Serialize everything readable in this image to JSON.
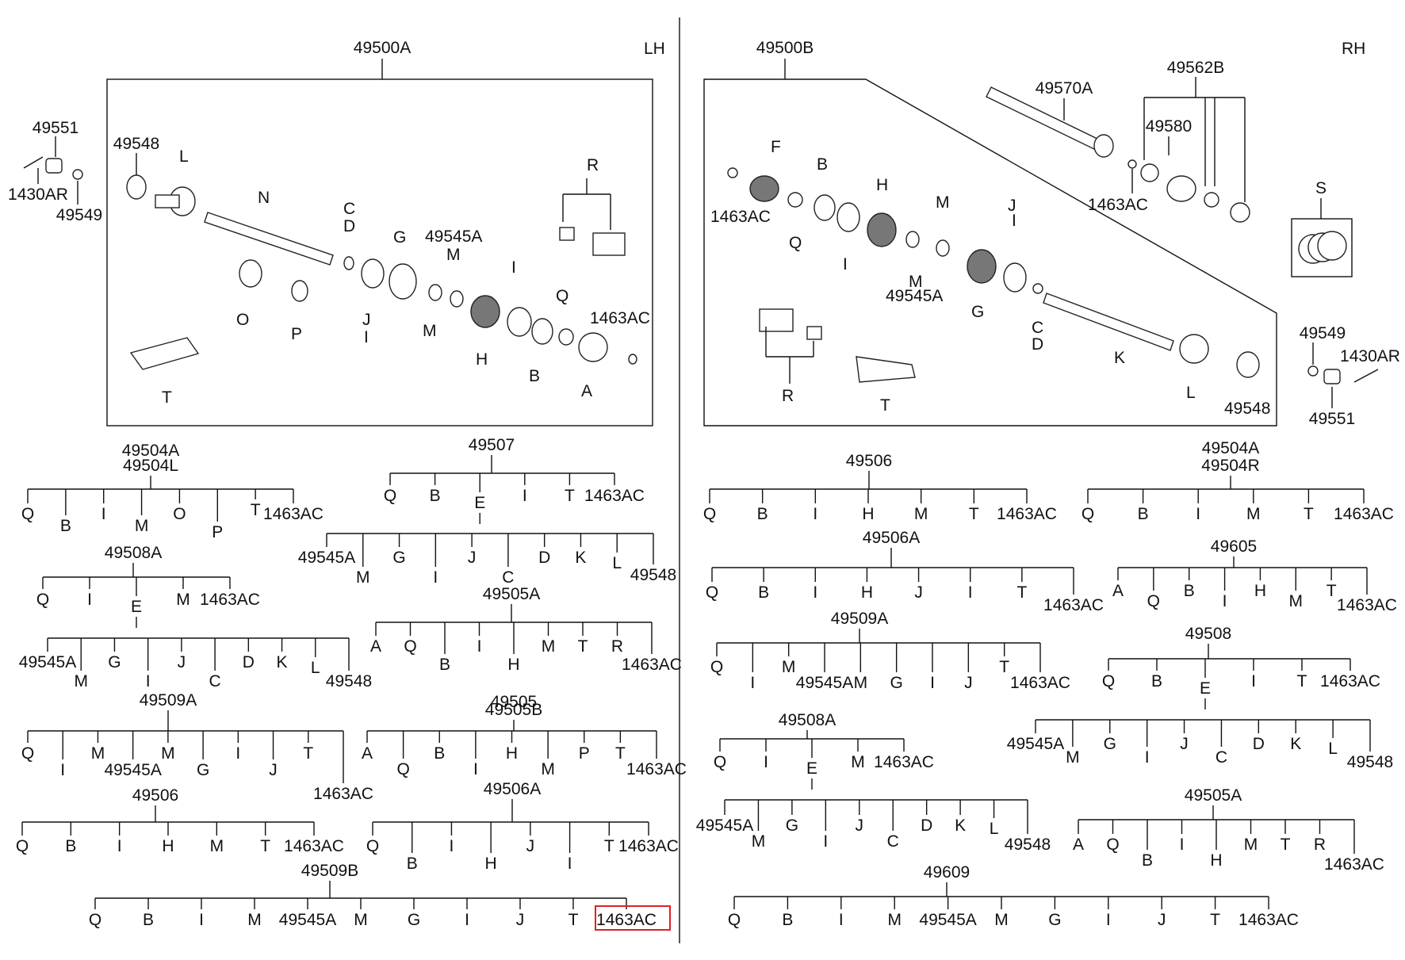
{
  "header": {
    "lh": "LH",
    "rh": "RH"
  },
  "assemblies": {
    "lh": "49500A",
    "rh": "49500B",
    "lh_outside": [
      "49551",
      "49548",
      "1430AR",
      "49549"
    ],
    "rh_outside": [
      "49549",
      "1430AR",
      "49551"
    ],
    "intermediate": [
      "49570A",
      "49562B",
      "49580",
      "1463AC"
    ],
    "kit": "S"
  },
  "lh_callouts": [
    "L",
    "N",
    "C",
    "D",
    "G",
    "49545A",
    "M",
    "R",
    "O",
    "P",
    "J",
    "I",
    "M",
    "I",
    "H",
    "B",
    "Q",
    "1463AC",
    "A",
    "T"
  ],
  "rh_callouts": [
    "F",
    "B",
    "H",
    "M",
    "J",
    "I",
    "1463AC",
    "Q",
    "I",
    "M",
    "49545A",
    "G",
    "C",
    "D",
    "R",
    "T",
    "K",
    "L",
    "49548"
  ],
  "trees": {
    "lh_49504": {
      "title": "49504A",
      "subtitle": "49504L",
      "items": [
        "Q",
        "B",
        "I",
        "M",
        "O",
        "P",
        "T",
        "1463AC"
      ]
    },
    "lh_49507": {
      "title": "49507",
      "items": [
        "Q",
        "B",
        "E",
        "I",
        "T",
        "1463AC"
      ]
    },
    "lh_49507_e": {
      "items": [
        "49545A",
        "M",
        "G",
        "I",
        "J",
        "C",
        "D",
        "K",
        "L",
        "49548"
      ]
    },
    "lh_49508a": {
      "title": "49508A",
      "items": [
        "Q",
        "I",
        "E",
        "M",
        "1463AC"
      ]
    },
    "lh_49508a_e": {
      "items": [
        "49545A",
        "M",
        "G",
        "I",
        "J",
        "C",
        "D",
        "K",
        "L",
        "49548"
      ]
    },
    "lh_49505a": {
      "title": "49505A",
      "items": [
        "A",
        "Q",
        "B",
        "I",
        "H",
        "M",
        "T",
        "R",
        "1463AC"
      ]
    },
    "lh_49509a": {
      "title": "49509A",
      "items": [
        "Q",
        "I",
        "M",
        "49545A",
        "M",
        "G",
        "I",
        "J",
        "T",
        "1463AC"
      ]
    },
    "lh_49505": {
      "title": "49505",
      "subtitle": "49505B",
      "items": [
        "A",
        "Q",
        "B",
        "I",
        "H",
        "M",
        "P",
        "T",
        "1463AC"
      ]
    },
    "lh_49506": {
      "title": "49506",
      "items": [
        "Q",
        "B",
        "I",
        "H",
        "M",
        "T",
        "1463AC"
      ]
    },
    "lh_49506a": {
      "title": "49506A",
      "items": [
        "Q",
        "B",
        "I",
        "H",
        "J",
        "I",
        "T",
        "1463AC"
      ]
    },
    "lh_49509b": {
      "title": "49509B",
      "items": [
        "Q",
        "B",
        "I",
        "M",
        "49545A",
        "M",
        "G",
        "I",
        "J",
        "T",
        "1463AC"
      ]
    },
    "rh_49506": {
      "title": "49506",
      "items": [
        "Q",
        "B",
        "I",
        "H",
        "M",
        "T",
        "1463AC"
      ]
    },
    "rh_49504": {
      "title": "49504A",
      "subtitle": "49504R",
      "items": [
        "Q",
        "B",
        "I",
        "M",
        "T",
        "1463AC"
      ]
    },
    "rh_49506a": {
      "title": "49506A",
      "items": [
        "Q",
        "B",
        "I",
        "H",
        "J",
        "I",
        "T",
        "1463AC"
      ]
    },
    "rh_49605": {
      "title": "49605",
      "items": [
        "A",
        "Q",
        "B",
        "I",
        "H",
        "M",
        "T",
        "1463AC"
      ]
    },
    "rh_49509a": {
      "title": "49509A",
      "items": [
        "Q",
        "I",
        "M",
        "49545A",
        "M",
        "G",
        "I",
        "J",
        "T",
        "1463AC"
      ]
    },
    "rh_49508": {
      "title": "49508",
      "items": [
        "Q",
        "B",
        "E",
        "I",
        "T",
        "1463AC"
      ]
    },
    "rh_49508_e": {
      "items": [
        "49545A",
        "M",
        "G",
        "I",
        "J",
        "C",
        "D",
        "K",
        "L",
        "49548"
      ]
    },
    "rh_49508a": {
      "title": "49508A",
      "items": [
        "Q",
        "I",
        "E",
        "M",
        "1463AC"
      ]
    },
    "rh_49508a_e": {
      "items": [
        "49545A",
        "M",
        "G",
        "I",
        "J",
        "C",
        "D",
        "K",
        "L",
        "49548"
      ]
    },
    "rh_49505a": {
      "title": "49505A",
      "items": [
        "A",
        "Q",
        "B",
        "I",
        "H",
        "M",
        "T",
        "R",
        "1463AC"
      ]
    },
    "rh_49609": {
      "title": "49609",
      "items": [
        "Q",
        "B",
        "I",
        "M",
        "49545A",
        "M",
        "G",
        "I",
        "J",
        "T",
        "1463AC"
      ]
    }
  },
  "highlight_color": "#e02020"
}
